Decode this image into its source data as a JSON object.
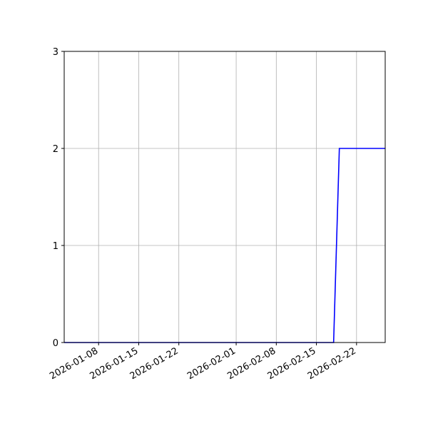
{
  "chart_data": {
    "type": "line",
    "title": "",
    "xlabel": "",
    "ylabel": "",
    "x_range": [
      "2026-01-02",
      "2026-02-27"
    ],
    "ylim": [
      0,
      3
    ],
    "grid": true,
    "x_ticks": [
      "2026-01-08",
      "2026-01-15",
      "2026-01-22",
      "2026-02-01",
      "2026-02-08",
      "2026-02-15",
      "2026-02-22"
    ],
    "y_ticks": [
      "0",
      "1",
      "2",
      "3"
    ],
    "series": [
      {
        "color": "#0000ff",
        "points": [
          {
            "x": "2026-01-02",
            "y": 0
          },
          {
            "x": "2026-02-18",
            "y": 0
          },
          {
            "x": "2026-02-19",
            "y": 2
          },
          {
            "x": "2026-02-27",
            "y": 2
          }
        ]
      }
    ]
  }
}
